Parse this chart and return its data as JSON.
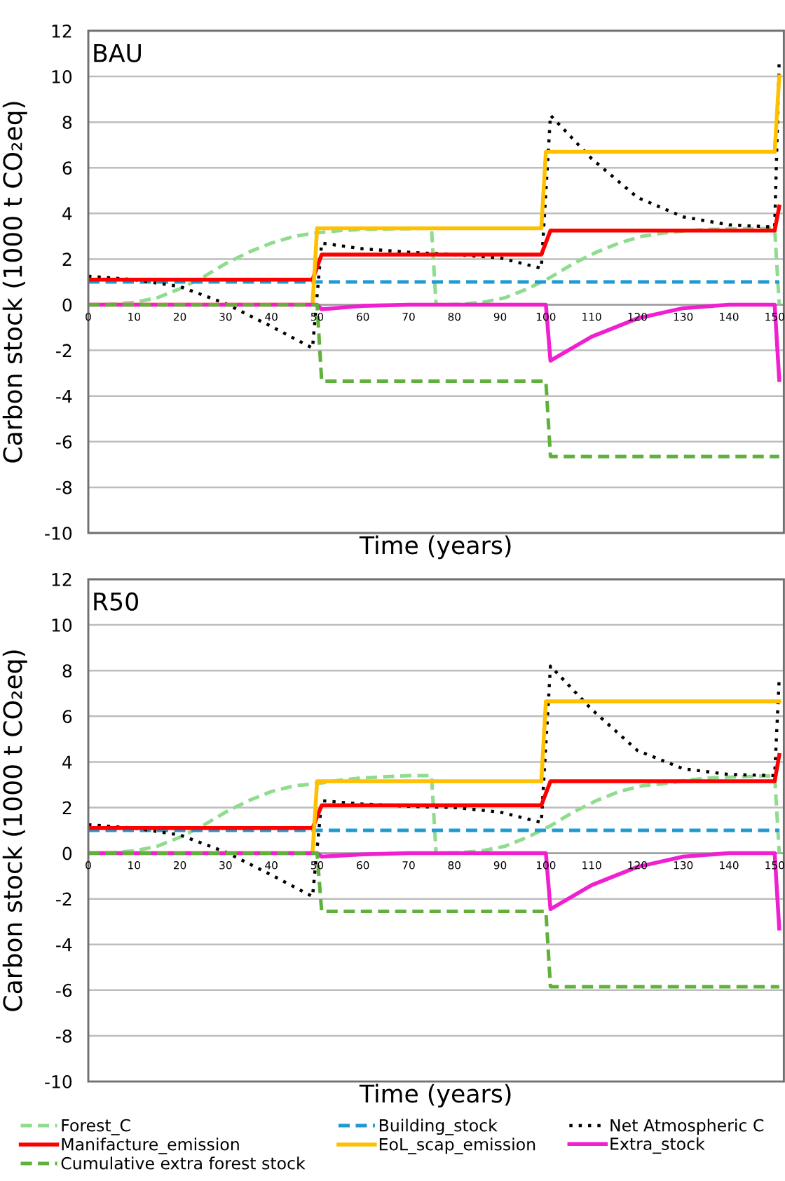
{
  "chart_data": [
    {
      "type": "line",
      "title": "BAU",
      "xlabel": "Time (years)",
      "ylabel": "Carbon stock (1000 t CO₂eq)",
      "xlim": [
        0,
        152
      ],
      "ylim": [
        -10,
        12
      ],
      "xticks": [
        0,
        10,
        20,
        30,
        40,
        50,
        60,
        70,
        80,
        90,
        100,
        110,
        120,
        130,
        140,
        150
      ],
      "yticks": [
        -10,
        -8,
        -6,
        -4,
        -2,
        0,
        2,
        4,
        6,
        8,
        10,
        12
      ],
      "grid": "y",
      "legend": "bottom",
      "series": [
        {
          "name": "Forest_C",
          "color": "#8fdc8f",
          "line_style": "dashed",
          "x": [
            0,
            5,
            10,
            15,
            20,
            25,
            30,
            35,
            40,
            45,
            50,
            55,
            60,
            75,
            76,
            81,
            86,
            91,
            96,
            101,
            106,
            111,
            116,
            121,
            126,
            131,
            136,
            150,
            151
          ],
          "values": [
            0,
            0.02,
            0.1,
            0.3,
            0.7,
            1.2,
            1.8,
            2.3,
            2.7,
            3.0,
            3.15,
            3.25,
            3.3,
            3.35,
            0,
            0.02,
            0.1,
            0.3,
            0.7,
            1.2,
            1.8,
            2.3,
            2.7,
            3.0,
            3.15,
            3.25,
            3.3,
            3.35,
            0
          ]
        },
        {
          "name": "Building_stock",
          "color": "#1f9bd1",
          "line_style": "dashed",
          "x": [
            0,
            151
          ],
          "values": [
            1.0,
            1.0
          ]
        },
        {
          "name": "Net Atmospheric C",
          "color": "#000000",
          "line_style": "dotted",
          "x": [
            0,
            10,
            20,
            30,
            40,
            49,
            51,
            60,
            70,
            80,
            90,
            99,
            101,
            110,
            120,
            130,
            140,
            150,
            151
          ],
          "values": [
            1.25,
            1.1,
            0.8,
            0.05,
            -0.95,
            -1.9,
            2.7,
            2.45,
            2.3,
            2.2,
            2.05,
            1.6,
            8.3,
            6.4,
            4.7,
            3.85,
            3.5,
            3.4,
            10.8
          ]
        },
        {
          "name": "Manifacture_emission",
          "color": "#ff0000",
          "line_style": "solid",
          "x": [
            0,
            49,
            51,
            99,
            101,
            150,
            151
          ],
          "values": [
            1.1,
            1.1,
            2.2,
            2.2,
            3.25,
            3.25,
            4.3
          ]
        },
        {
          "name": "EoL_scap_emission",
          "color": "#ffc000",
          "line_style": "solid",
          "x": [
            0,
            49,
            50,
            99,
            100,
            150,
            151
          ],
          "values": [
            0,
            0,
            3.35,
            3.35,
            6.7,
            6.7,
            10.0
          ]
        },
        {
          "name": "Extra_stock",
          "color": "#f020d0",
          "line_style": "solid",
          "x": [
            0,
            50,
            51,
            60,
            70,
            100,
            101,
            110,
            120,
            130,
            140,
            150,
            151
          ],
          "values": [
            0,
            0,
            -0.2,
            -0.05,
            0,
            0,
            -2.45,
            -1.4,
            -0.6,
            -0.15,
            0,
            0,
            -3.3
          ]
        },
        {
          "name": "Cumulative extra forest stock",
          "color": "#5fb13c",
          "line_style": "dashed",
          "x": [
            0,
            50,
            51,
            100,
            101,
            151
          ],
          "values": [
            0,
            0,
            -3.35,
            -3.35,
            -6.65,
            -6.65
          ]
        }
      ]
    },
    {
      "type": "line",
      "title": "R50",
      "xlabel": "Time (years)",
      "ylabel": "Carbon stock (1000 t CO₂eq)",
      "xlim": [
        0,
        152
      ],
      "ylim": [
        -10,
        12
      ],
      "xticks": [
        0,
        10,
        20,
        30,
        40,
        50,
        60,
        70,
        80,
        90,
        100,
        110,
        120,
        130,
        140,
        150
      ],
      "yticks": [
        -10,
        -8,
        -6,
        -4,
        -2,
        0,
        2,
        4,
        6,
        8,
        10,
        12
      ],
      "grid": "y",
      "series": [
        {
          "color": "#8fdc8f",
          "line_style": "dashed",
          "x": [
            0,
            5,
            10,
            15,
            20,
            25,
            30,
            35,
            40,
            45,
            50,
            55,
            60,
            70,
            75,
            76,
            81,
            86,
            91,
            96,
            101,
            106,
            111,
            116,
            121,
            126,
            131,
            136,
            150,
            151
          ],
          "values": [
            0,
            0.02,
            0.1,
            0.3,
            0.7,
            1.2,
            1.8,
            2.3,
            2.7,
            2.95,
            3.05,
            3.2,
            3.3,
            3.4,
            3.4,
            0,
            0.02,
            0.1,
            0.3,
            0.7,
            1.2,
            1.8,
            2.3,
            2.7,
            2.95,
            3.05,
            3.2,
            3.3,
            3.4,
            0
          ]
        },
        {
          "color": "#1f9bd1",
          "line_style": "dashed",
          "x": [
            0,
            151
          ],
          "values": [
            1.0,
            1.0
          ]
        },
        {
          "color": "#000000",
          "line_style": "dotted",
          "x": [
            0,
            10,
            20,
            30,
            40,
            49,
            51,
            60,
            70,
            80,
            90,
            99,
            101,
            110,
            120,
            130,
            140,
            150,
            151
          ],
          "values": [
            1.25,
            1.1,
            0.8,
            0.05,
            -0.95,
            -1.9,
            2.3,
            2.15,
            2.05,
            2.0,
            1.8,
            1.35,
            8.2,
            6.3,
            4.5,
            3.7,
            3.45,
            3.4,
            7.7
          ]
        },
        {
          "color": "#ff0000",
          "line_style": "solid",
          "x": [
            0,
            49,
            51,
            99,
            101,
            150,
            151
          ],
          "values": [
            1.1,
            1.1,
            2.1,
            2.1,
            3.15,
            3.15,
            4.3
          ]
        },
        {
          "color": "#ffc000",
          "line_style": "solid",
          "x": [
            0,
            49,
            50,
            99,
            100,
            151
          ],
          "values": [
            0,
            0,
            3.15,
            3.15,
            6.65,
            6.65
          ]
        },
        {
          "color": "#f020d0",
          "line_style": "solid",
          "x": [
            0,
            50,
            51,
            60,
            70,
            100,
            101,
            110,
            120,
            130,
            140,
            150,
            151
          ],
          "values": [
            0,
            0,
            -0.15,
            -0.05,
            0,
            0,
            -2.45,
            -1.4,
            -0.6,
            -0.15,
            0,
            0,
            -3.3
          ]
        },
        {
          "color": "#5fb13c",
          "line_style": "dashed",
          "x": [
            0,
            50,
            51,
            100,
            101,
            151
          ],
          "values": [
            0,
            0,
            -2.55,
            -2.55,
            -5.85,
            -5.85
          ]
        }
      ]
    }
  ]
}
